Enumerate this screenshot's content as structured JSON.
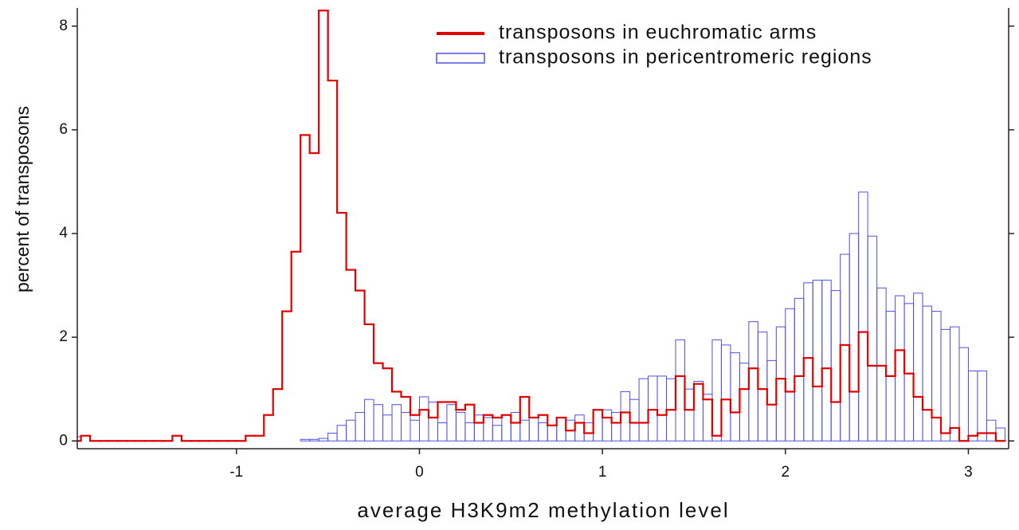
{
  "chart_data": {
    "type": "histogram",
    "xlabel": "average H3K9m2 methylation level",
    "ylabel": "percent of transposons",
    "bins": [
      -1.9,
      -1.85,
      -1.8,
      -1.75,
      -1.7,
      -1.65,
      -1.6,
      -1.55,
      -1.5,
      -1.45,
      -1.4,
      -1.35,
      -1.3,
      -1.25,
      -1.2,
      -1.15,
      -1.1,
      -1.05,
      -1.0,
      -0.95,
      -0.9,
      -0.85,
      -0.8,
      -0.75,
      -0.7,
      -0.65,
      -0.6,
      -0.55,
      -0.5,
      -0.45,
      -0.4,
      -0.35,
      -0.3,
      -0.25,
      -0.2,
      -0.15,
      -0.1,
      -0.05,
      0,
      0.05,
      0.1,
      0.15,
      0.2,
      0.25,
      0.3,
      0.35,
      0.4,
      0.45,
      0.5,
      0.55,
      0.6,
      0.65,
      0.7,
      0.75,
      0.8,
      0.85,
      0.9,
      0.95,
      1.0,
      1.05,
      1.1,
      1.15,
      1.2,
      1.25,
      1.3,
      1.35,
      1.4,
      1.45,
      1.5,
      1.55,
      1.6,
      1.65,
      1.7,
      1.75,
      1.8,
      1.85,
      1.9,
      1.95,
      2.0,
      2.05,
      2.1,
      2.15,
      2.2,
      2.25,
      2.3,
      2.35,
      2.4,
      2.45,
      2.5,
      2.55,
      2.6,
      2.65,
      2.7,
      2.75,
      2.8,
      2.85,
      2.9,
      2.95,
      3.0,
      3.05,
      3.1,
      3.15,
      3.2
    ],
    "series": [
      {
        "name": "transposons in pericentromeric regions",
        "color": "#5050e0",
        "histtype": "bar",
        "values": [
          0.08,
          0,
          0,
          0,
          0,
          0,
          0,
          0,
          0,
          0,
          0,
          0,
          0,
          0,
          0,
          0,
          0,
          0,
          0,
          0,
          0,
          0,
          0,
          0,
          0,
          0.03,
          0.03,
          0.05,
          0.15,
          0.3,
          0.4,
          0.55,
          0.8,
          0.7,
          0.5,
          0.7,
          0.55,
          0.4,
          0.85,
          0.75,
          0.35,
          0.7,
          0.55,
          0.35,
          0.5,
          0.45,
          0.3,
          0.5,
          0.55,
          0.4,
          0.45,
          0.35,
          0.3,
          0.45,
          0.4,
          0.5,
          0.35,
          0.6,
          0.6,
          0.55,
          0.95,
          0.8,
          1.2,
          1.25,
          1.25,
          1.2,
          1.95,
          1.0,
          1.15,
          0.9,
          1.95,
          1.85,
          1.7,
          1.5,
          2.3,
          2.1,
          1.55,
          2.2,
          2.55,
          2.75,
          3.05,
          3.1,
          3.1,
          2.9,
          3.6,
          4.0,
          4.8,
          3.95,
          2.95,
          2.5,
          2.8,
          2.65,
          2.85,
          2.6,
          2.5,
          2.15,
          2.2,
          1.8,
          1.35,
          1.35,
          0.4,
          0.25
        ]
      },
      {
        "name": "transposons in euchromatic arms",
        "color": "#e00000",
        "histtype": "step",
        "values": [
          0,
          0.1,
          0,
          0,
          0,
          0,
          0,
          0,
          0,
          0,
          0,
          0.1,
          0,
          0,
          0,
          0,
          0,
          0,
          0,
          0.1,
          0.1,
          0.5,
          1.0,
          2.5,
          3.65,
          5.9,
          5.55,
          8.3,
          6.95,
          4.4,
          3.3,
          2.9,
          2.25,
          1.5,
          1.4,
          0.95,
          0.85,
          0.5,
          0.6,
          0.45,
          0.75,
          0.75,
          0.6,
          0.7,
          0.35,
          0.5,
          0.45,
          0.5,
          0.35,
          0.85,
          0.45,
          0.5,
          0.3,
          0.45,
          0.2,
          0.35,
          0.15,
          0.6,
          0.45,
          0.35,
          0.55,
          0.35,
          0.35,
          0.6,
          0.5,
          0.6,
          1.25,
          0.6,
          1.1,
          0.8,
          0.1,
          0.8,
          0.55,
          1.0,
          1.4,
          1.0,
          0.7,
          1.2,
          0.95,
          1.25,
          1.6,
          1.05,
          1.4,
          0.75,
          1.85,
          0.95,
          2.1,
          1.45,
          1.45,
          1.25,
          1.75,
          1.3,
          0.85,
          0.6,
          0.45,
          0.15,
          0.25,
          0,
          0.1,
          0.15,
          0.15,
          0
        ]
      }
    ],
    "legend_order": [
      1,
      0
    ],
    "legend": "upper right",
    "xlim": [
      -1.87,
      3.22
    ],
    "ylim": [
      -0.15,
      8.35
    ],
    "xticks": [
      -1,
      0,
      1,
      2,
      3
    ],
    "yticks": [
      0,
      2,
      4,
      6,
      8
    ]
  }
}
